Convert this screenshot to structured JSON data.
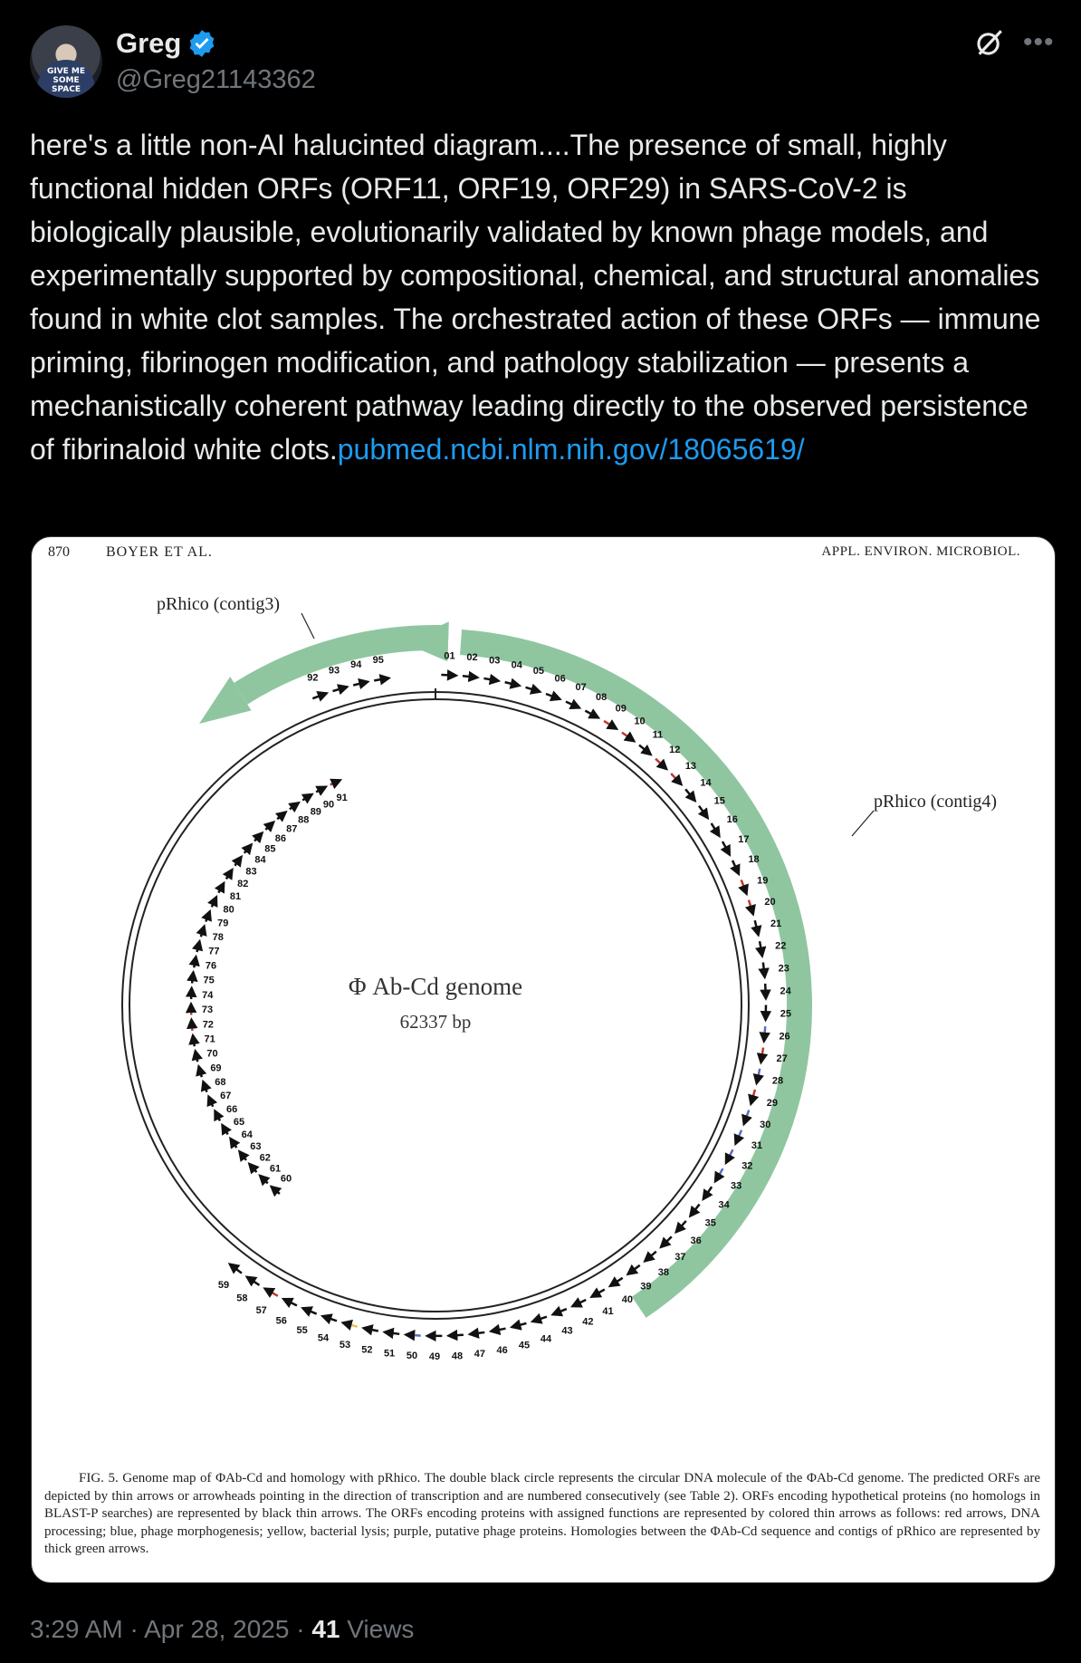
{
  "author": {
    "name": "Greg",
    "handle": "@Greg21143362",
    "avatar_text": "GIVE ME SOME SPACE"
  },
  "tweet": {
    "text": "here's a little non-AI halucinted diagram....The presence of small, highly functional hidden ORFs (ORF11, ORF19, ORF29) in SARS-CoV-2 is biologically plausible, evolutionarily validated by known phage models, and experimentally supported by compositional, chemical, and structural anomalies found in white clot samples. The orchestrated action of these ORFs — immune priming, fibrinogen modification, and pathology stabilization — presents a mechanistically coherent pathway leading directly to the observed persistence of fibrinaloid white clots.",
    "link": "pubmed.ncbi.nlm.nih.gov/18065619/"
  },
  "figure": {
    "page_number": "870",
    "running_author": "BOYER ET AL.",
    "journal": "APPL. ENVIRON. MICROBIOL.",
    "contig3_label": "pRhico (contig3)",
    "contig4_label": "pRhico (contig4)",
    "genome_title": "Φ Ab-Cd genome",
    "genome_size": "62337 bp",
    "caption": "FIG. 5. Genome map of ΦAb-Cd and homology with pRhico. The double black circle represents the circular DNA molecule of the ΦAb-Cd genome. The predicted ORFs are depicted by thin arrows or arrowheads pointing in the direction of transcription and are numbered consecutively (see Table 2). ORFs encoding hypothetical proteins (no homologs in BLAST-P searches) are represented by black thin arrows. The ORFs encoding proteins with assigned functions are represented by colored thin arrows as follows: red arrows, DNA processing; blue, phage morphogenesis; yellow, bacterial lysis; purple, putative phage proteins. Homologies between the ΦAb-Cd sequence and contigs of pRhico are represented by thick green arrows.",
    "colors": {
      "hypothetical": "#111111",
      "dna_processing": "#c0392b",
      "morphogenesis": "#5b6bc0",
      "lysis": "#e8c24a",
      "homology": "#8fc6a0"
    },
    "orf_labels": [
      {
        "id": "01"
      },
      {
        "id": "02"
      },
      {
        "id": "03"
      },
      {
        "id": "04"
      },
      {
        "id": "05"
      },
      {
        "id": "06"
      },
      {
        "id": "07"
      },
      {
        "id": "08"
      },
      {
        "id": "09"
      },
      {
        "id": "10"
      },
      {
        "id": "11"
      },
      {
        "id": "12"
      },
      {
        "id": "13"
      },
      {
        "id": "14"
      },
      {
        "id": "15"
      },
      {
        "id": "16"
      },
      {
        "id": "17"
      },
      {
        "id": "18"
      },
      {
        "id": "19"
      },
      {
        "id": "20"
      },
      {
        "id": "21"
      },
      {
        "id": "22"
      },
      {
        "id": "23"
      },
      {
        "id": "24"
      },
      {
        "id": "25"
      },
      {
        "id": "26"
      },
      {
        "id": "27"
      },
      {
        "id": "28"
      },
      {
        "id": "29"
      },
      {
        "id": "30"
      },
      {
        "id": "31"
      },
      {
        "id": "32"
      },
      {
        "id": "33"
      },
      {
        "id": "34"
      },
      {
        "id": "35"
      },
      {
        "id": "36"
      },
      {
        "id": "37"
      },
      {
        "id": "38"
      },
      {
        "id": "39"
      },
      {
        "id": "40"
      },
      {
        "id": "41"
      },
      {
        "id": "42"
      },
      {
        "id": "43"
      },
      {
        "id": "44"
      },
      {
        "id": "45"
      },
      {
        "id": "46"
      },
      {
        "id": "47"
      },
      {
        "id": "48"
      },
      {
        "id": "49"
      },
      {
        "id": "50"
      },
      {
        "id": "51"
      },
      {
        "id": "52"
      },
      {
        "id": "53"
      },
      {
        "id": "54"
      },
      {
        "id": "55"
      },
      {
        "id": "56"
      },
      {
        "id": "57"
      },
      {
        "id": "58"
      },
      {
        "id": "59"
      },
      {
        "id": "60"
      },
      {
        "id": "61"
      },
      {
        "id": "62"
      },
      {
        "id": "63"
      },
      {
        "id": "64"
      },
      {
        "id": "65"
      },
      {
        "id": "66"
      },
      {
        "id": "67"
      },
      {
        "id": "68"
      },
      {
        "id": "69"
      },
      {
        "id": "70"
      },
      {
        "id": "71"
      },
      {
        "id": "72"
      },
      {
        "id": "73"
      },
      {
        "id": "74"
      },
      {
        "id": "75"
      },
      {
        "id": "76"
      },
      {
        "id": "77"
      },
      {
        "id": "78"
      },
      {
        "id": "79"
      },
      {
        "id": "80"
      },
      {
        "id": "81"
      },
      {
        "id": "82"
      },
      {
        "id": "83"
      },
      {
        "id": "84"
      },
      {
        "id": "85"
      },
      {
        "id": "86"
      },
      {
        "id": "87"
      },
      {
        "id": "88"
      },
      {
        "id": "89"
      },
      {
        "id": "90"
      },
      {
        "id": "91"
      },
      {
        "id": "92"
      },
      {
        "id": "93"
      },
      {
        "id": "94"
      },
      {
        "id": "95"
      }
    ]
  },
  "meta": {
    "time": "3:29 AM",
    "date": "Apr 28, 2025",
    "views_count": "41",
    "views_label": "Views"
  }
}
